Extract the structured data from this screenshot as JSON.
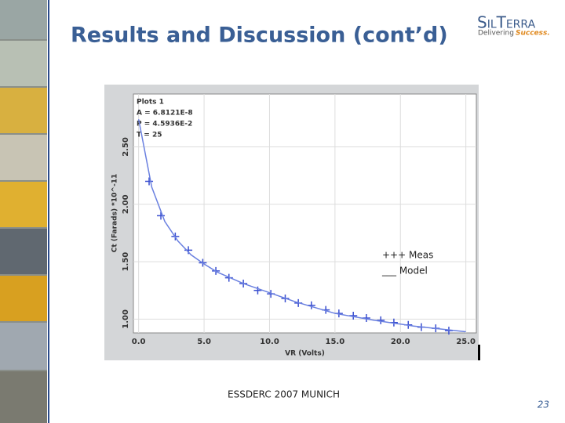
{
  "title": "Results and Discussion (cont’d)",
  "logo": {
    "name": "SilTerra",
    "tagline": "Delivering",
    "tagline_accent": "Success."
  },
  "footer": "ESSDERC 2007 MUNICH",
  "page_number": "23",
  "chart_data": {
    "type": "line",
    "annotations": [
      "Plots 1",
      "A = 6.8121E-8",
      "P = 4.5936E-2",
      "T = 25"
    ],
    "x_label": "VR (Volts)",
    "y_label": "Ct (Farads) *10^-11",
    "xlim": [
      -0.4,
      25.8
    ],
    "ylim": [
      0.88,
      2.96
    ],
    "xticks": [
      {
        "value": 0,
        "label": "0.0"
      },
      {
        "value": 5,
        "label": "5.0"
      },
      {
        "value": 10,
        "label": "10.0"
      },
      {
        "value": 15,
        "label": "15.0"
      },
      {
        "value": 20,
        "label": "20.0"
      },
      {
        "value": 25,
        "label": "25.0"
      }
    ],
    "yticks": [
      {
        "value": 1,
        "label": "1.00"
      },
      {
        "value": 1.5,
        "label": "1.50"
      },
      {
        "value": 2,
        "label": "2.00"
      },
      {
        "value": 2.5,
        "label": "2.50"
      }
    ],
    "grid": true,
    "series": [
      {
        "name": "+++ Meas",
        "color": "#3a4fd0",
        "marker": "plus",
        "x": [
          0.8,
          1.7,
          2.8,
          3.8,
          4.9,
          5.9,
          6.9,
          8.0,
          9.1,
          10.1,
          11.2,
          12.2,
          13.2,
          14.3,
          15.3,
          16.4,
          17.4,
          18.5,
          19.5,
          20.6,
          21.6,
          22.7,
          23.7
        ],
        "values": [
          2.2,
          1.9,
          1.72,
          1.6,
          1.49,
          1.42,
          1.36,
          1.31,
          1.25,
          1.22,
          1.18,
          1.14,
          1.12,
          1.08,
          1.05,
          1.03,
          1.01,
          0.99,
          0.97,
          0.95,
          0.93,
          0.92,
          0.9
        ]
      },
      {
        "name": "___ Model",
        "color": "#6a80e0",
        "marker": "none",
        "x": [
          0,
          1,
          2,
          3,
          4,
          5,
          6,
          8,
          10,
          12,
          15,
          18,
          21,
          25
        ],
        "values": [
          2.74,
          2.15,
          1.85,
          1.68,
          1.56,
          1.48,
          1.41,
          1.31,
          1.23,
          1.15,
          1.05,
          0.99,
          0.94,
          0.89
        ]
      }
    ]
  }
}
